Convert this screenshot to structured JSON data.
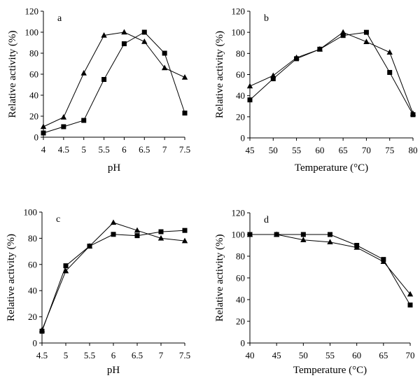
{
  "chart_data": [
    {
      "type": "line",
      "panel_label": "a",
      "xlabel": "pH",
      "ylabel": "Relative activity (%)",
      "x_ticks": [
        "4",
        "4.5",
        "5",
        "5.5",
        "6",
        "6.5",
        "7",
        "7.5"
      ],
      "y_ticks": [
        "0",
        "20",
        "40",
        "60",
        "80",
        "100",
        "120"
      ],
      "xlim": [
        4,
        7.5
      ],
      "ylim": [
        0,
        120
      ],
      "series": [
        {
          "name": "squares",
          "marker": "square",
          "x": [
            4,
            4.5,
            5,
            5.5,
            6,
            6.5,
            7,
            7.5
          ],
          "y": [
            4,
            10,
            16,
            55,
            89,
            100,
            80,
            23
          ]
        },
        {
          "name": "triangles",
          "marker": "triangle",
          "x": [
            4,
            4.5,
            5,
            5.5,
            6,
            6.5,
            7,
            7.5
          ],
          "y": [
            10,
            19,
            61,
            97,
            100,
            91,
            66,
            57
          ]
        }
      ]
    },
    {
      "type": "line",
      "panel_label": "b",
      "xlabel": "Temperature (°C)",
      "ylabel": "Relative activity (%)",
      "x_ticks": [
        "45",
        "50",
        "55",
        "60",
        "65",
        "70",
        "75",
        "80"
      ],
      "y_ticks": [
        "0",
        "20",
        "40",
        "60",
        "80",
        "100",
        "120"
      ],
      "xlim": [
        45,
        80
      ],
      "ylim": [
        0,
        120
      ],
      "series": [
        {
          "name": "squares",
          "marker": "square",
          "x": [
            45,
            50,
            55,
            60,
            65,
            70,
            75,
            80
          ],
          "y": [
            36,
            56,
            75,
            84,
            97,
            100,
            62,
            22
          ]
        },
        {
          "name": "triangles",
          "marker": "triangle",
          "x": [
            45,
            50,
            55,
            60,
            65,
            70,
            75,
            80
          ],
          "y": [
            49,
            59,
            76,
            84,
            100,
            91,
            81,
            23
          ]
        }
      ]
    },
    {
      "type": "line",
      "panel_label": "c",
      "xlabel": "pH",
      "ylabel": "Relative activity (%)",
      "x_ticks": [
        "4.5",
        "5",
        "5.5",
        "6",
        "6.5",
        "7",
        "7.5"
      ],
      "y_ticks": [
        "0",
        "20",
        "40",
        "60",
        "80",
        "100"
      ],
      "xlim": [
        4.5,
        7.5
      ],
      "ylim": [
        0,
        100
      ],
      "series": [
        {
          "name": "squares",
          "marker": "square",
          "x": [
            4.5,
            5,
            5.5,
            6,
            6.5,
            7,
            7.5
          ],
          "y": [
            9,
            59,
            74,
            83,
            82,
            85,
            86
          ]
        },
        {
          "name": "triangles",
          "marker": "triangle",
          "x": [
            4.5,
            5,
            5.5,
            6,
            6.5,
            7,
            7.5
          ],
          "y": [
            10,
            55,
            74,
            92,
            86,
            80,
            78
          ]
        }
      ]
    },
    {
      "type": "line",
      "panel_label": "d",
      "xlabel": "Temperature (°C)",
      "ylabel": "Relative activity (%)",
      "x_ticks": [
        "40",
        "45",
        "50",
        "55",
        "60",
        "65",
        "70"
      ],
      "y_ticks": [
        "0",
        "20",
        "40",
        "60",
        "80",
        "100",
        "120"
      ],
      "xlim": [
        40,
        70
      ],
      "ylim": [
        0,
        120
      ],
      "series": [
        {
          "name": "squares",
          "marker": "square",
          "x": [
            40,
            45,
            50,
            55,
            60,
            65,
            70
          ],
          "y": [
            100,
            100,
            100,
            100,
            90,
            77,
            35
          ]
        },
        {
          "name": "triangles",
          "marker": "triangle",
          "x": [
            40,
            45,
            50,
            55,
            60,
            65,
            70
          ],
          "y": [
            100,
            100,
            95,
            93,
            88,
            75,
            45
          ]
        }
      ]
    }
  ]
}
